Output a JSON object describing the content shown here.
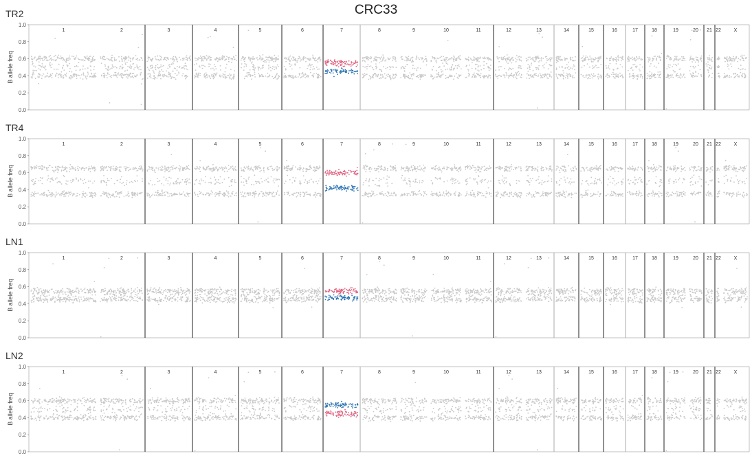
{
  "title": "CRC33",
  "colors": {
    "normal": "#c8c8c8",
    "upper": "#e0607e",
    "lower": "#2c74b4",
    "divider": "#222222",
    "gray_divider": "#aaaaaa"
  },
  "chart_data": [
    {
      "type": "scatter",
      "panel_label": "TR2",
      "ylabel": "B allele freq",
      "ylim": [
        0,
        1
      ],
      "yticks": [
        "0.0",
        "0.2",
        "0.4",
        "0.6",
        "0.8",
        "1.0"
      ],
      "chromosomes": [
        "1",
        "2",
        "3",
        "4",
        "5",
        "6",
        "7",
        "8",
        "9",
        "10",
        "11",
        "12",
        "13",
        "14",
        "15",
        "16",
        "17",
        "18",
        "19",
        "20",
        "21",
        "22",
        "X"
      ],
      "bands": {
        "default": [
          0.4,
          0.6
        ],
        "chr7_upper": 0.55,
        "chr7_lower": 0.45
      }
    },
    {
      "type": "scatter",
      "panel_label": "TR4",
      "ylabel": "B allele freq",
      "ylim": [
        0,
        1
      ],
      "yticks": [
        "0.0",
        "0.2",
        "0.4",
        "0.6",
        "0.8",
        "1.0"
      ],
      "chromosomes": [
        "1",
        "2",
        "3",
        "4",
        "5",
        "6",
        "7",
        "8",
        "9",
        "10",
        "11",
        "12",
        "13",
        "14",
        "15",
        "16",
        "17",
        "18",
        "19",
        "20",
        "21",
        "22",
        "X"
      ],
      "bands": {
        "default": [
          0.35,
          0.65
        ],
        "chr7_upper": 0.6,
        "chr7_lower": 0.42
      }
    },
    {
      "type": "scatter",
      "panel_label": "LN1",
      "ylabel": "B allele freq",
      "ylim": [
        0,
        1
      ],
      "yticks": [
        "0.0",
        "0.2",
        "0.4",
        "0.6",
        "0.8",
        "1.0"
      ],
      "chromosomes": [
        "1",
        "2",
        "3",
        "4",
        "5",
        "6",
        "7",
        "8",
        "9",
        "10",
        "11",
        "12",
        "13",
        "14",
        "15",
        "16",
        "17",
        "18",
        "19",
        "20",
        "21",
        "22",
        "X"
      ],
      "bands": {
        "default": [
          0.45,
          0.55
        ],
        "chr7_upper": 0.55,
        "chr7_lower": 0.47
      }
    },
    {
      "type": "scatter",
      "panel_label": "LN2",
      "ylabel": "B allele freq",
      "ylim": [
        0,
        1
      ],
      "yticks": [
        "0.0",
        "0.2",
        "0.4",
        "0.6",
        "0.8",
        "1.0"
      ],
      "chromosomes": [
        "1",
        "2",
        "3",
        "4",
        "5",
        "6",
        "7",
        "8",
        "9",
        "10",
        "11",
        "12",
        "13",
        "14",
        "15",
        "16",
        "17",
        "18",
        "19",
        "20",
        "21",
        "22",
        "X"
      ],
      "bands": {
        "default": [
          0.4,
          0.6
        ],
        "chr7_upper": 0.45,
        "chr7_lower": 0.55
      }
    }
  ]
}
